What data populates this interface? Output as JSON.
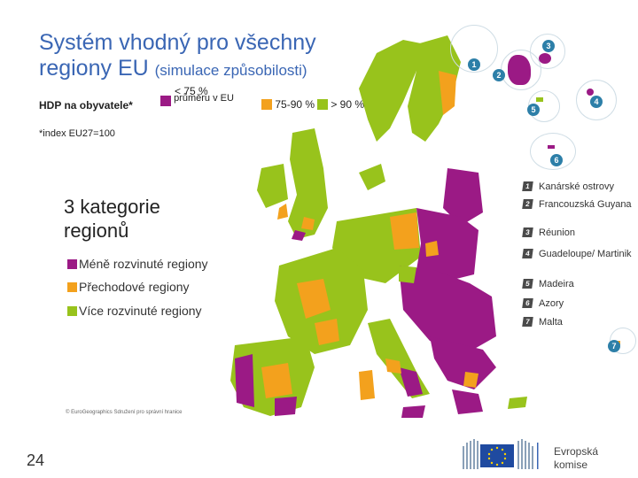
{
  "title": {
    "line1": "Systém vhodný pro všechny",
    "line2_main": "regiony EU",
    "line2_sub": "(simulace způsobilosti)"
  },
  "legend": {
    "hdp_label": "HDP na obyvatele*",
    "items": [
      {
        "label_top": "< 75 %",
        "label": "průměru v EU",
        "color": "#9b1a85"
      },
      {
        "label": "75-90 %",
        "color": "#f3a11d"
      },
      {
        "label": "> 90 %",
        "color": "#98c31c"
      }
    ],
    "index_note": "*index EU27=100"
  },
  "categories": {
    "heading": "3 kategorie regionů",
    "items": [
      {
        "label": "Méně rozvinuté regiony",
        "color": "#9b1a85"
      },
      {
        "label": "Přechodové regiony",
        "color": "#f3a11d"
      },
      {
        "label": "Více rozvinuté regiony",
        "color": "#98c31c"
      }
    ]
  },
  "copyright": "© EuroGeographics Sdružení pro správní hranice",
  "page_number": "24",
  "outermost": [
    {
      "n": "1",
      "label": "Kanárské ostrovy"
    },
    {
      "n": "2",
      "label": "Francouzská Guyana"
    },
    {
      "n": "3",
      "label": "Réunion"
    },
    {
      "n": "4",
      "label": "Guadeloupe/ Martinik"
    },
    {
      "n": "5",
      "label": "Madeira"
    },
    {
      "n": "6",
      "label": "Azory"
    },
    {
      "n": "7",
      "label": "Malta"
    }
  ],
  "logo": {
    "line1": "Evropská",
    "line2": "komise"
  }
}
